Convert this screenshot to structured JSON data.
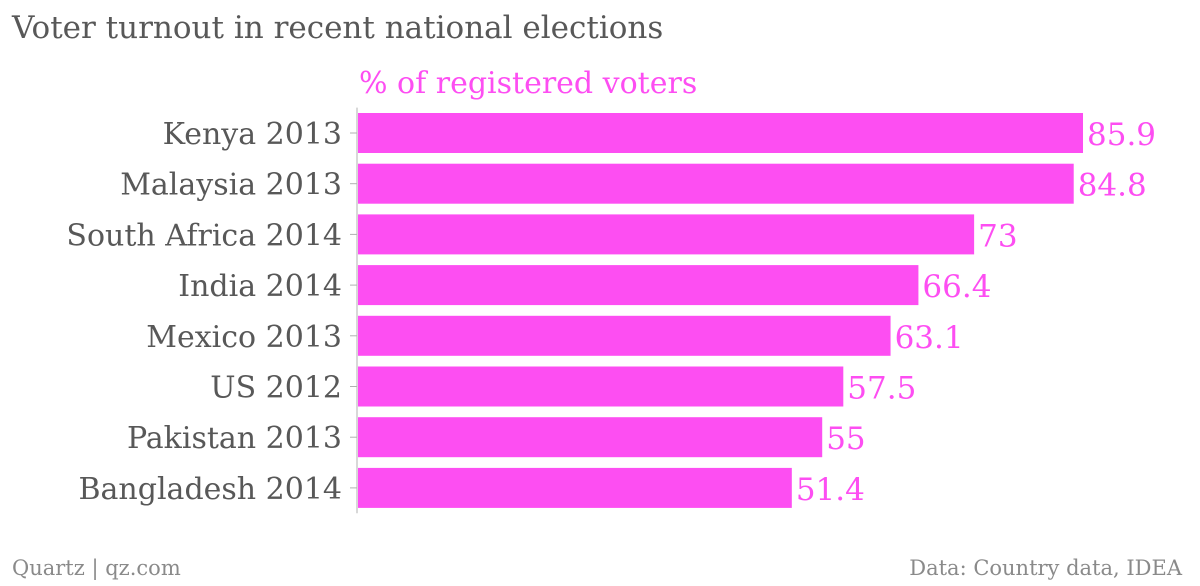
{
  "chart_data": {
    "type": "bar",
    "orientation": "horizontal",
    "title": "Voter turnout in recent national elections",
    "unit_label": "% of registered voters",
    "categories": [
      "Kenya 2013",
      "Malaysia 2013",
      "South Africa 2014",
      "India 2014",
      "Mexico 2013",
      "US 2012",
      "Pakistan 2013",
      "Bangladesh 2014"
    ],
    "values": [
      85.9,
      84.8,
      73,
      66.4,
      63.1,
      57.5,
      55,
      51.4
    ],
    "value_labels": [
      "85.9",
      "84.8",
      "73",
      "66.4",
      "63.1",
      "57.5",
      "55",
      "51.4"
    ],
    "xlim": [
      0,
      85.9
    ],
    "grid": false,
    "bar_color": "#fd4ef2",
    "label_color": "#fd4ef2"
  },
  "footer": {
    "credit": "Quartz | qz.com",
    "source": "Data: Country data, IDEA"
  },
  "colors": {
    "text": "#585858",
    "footer_text": "#8a8a8a",
    "axis": "#b0b0b0"
  }
}
